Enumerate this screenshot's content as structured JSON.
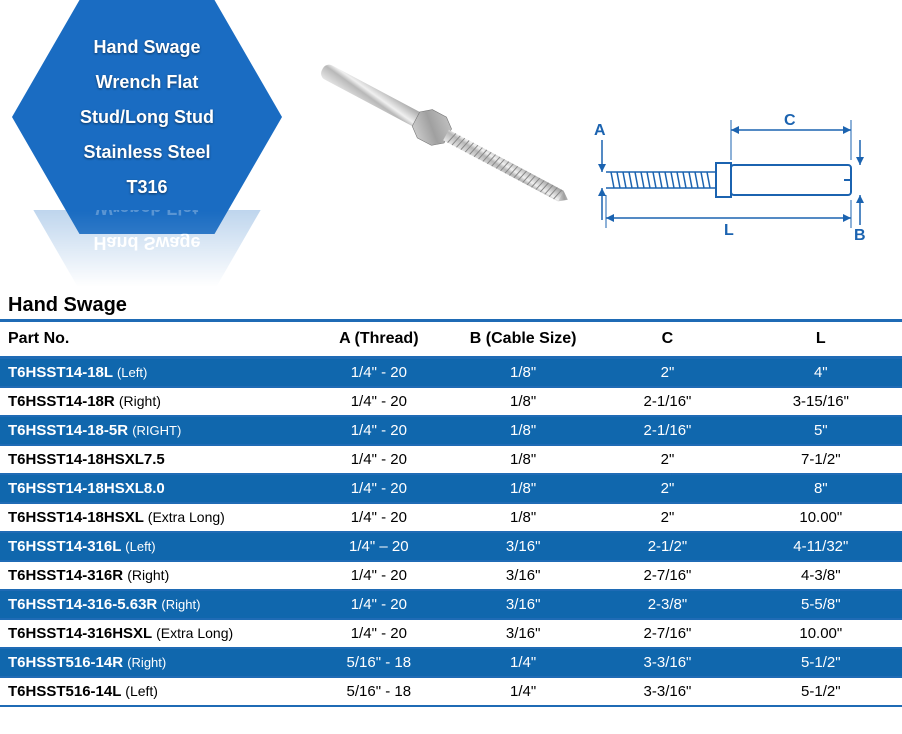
{
  "hexagon": {
    "lines": [
      "Hand Swage",
      "Wrench Flat",
      "Stud/Long Stud",
      "Stainless Steel",
      "T316"
    ],
    "bg_color": "#1a6cc2",
    "text_color": "#ffffff"
  },
  "diagram": {
    "labels": {
      "A": "A",
      "B": "B",
      "C": "C",
      "L": "L"
    },
    "stroke_color": "#1b63b0"
  },
  "table": {
    "title": "Hand Swage",
    "header_border_color": "#1f6bb5",
    "row_border_color": "#1f6bb5",
    "blue_row_bg": "#1067ad",
    "columns": [
      {
        "key": "part",
        "label": "Part No.",
        "align": "left",
        "width": "34%"
      },
      {
        "key": "a",
        "label": "A (Thread)",
        "align": "center",
        "width": "16%"
      },
      {
        "key": "b",
        "label": "B (Cable Size)",
        "align": "center",
        "width": "16%"
      },
      {
        "key": "c",
        "label": "C",
        "align": "center",
        "width": "16%"
      },
      {
        "key": "l",
        "label": "L",
        "align": "center",
        "width": "18%"
      }
    ],
    "rows": [
      {
        "part": "T6HSST14-18L",
        "suffix": "(Left)",
        "a": "1/4\" - 20",
        "b": "1/8\"",
        "c": "2\"",
        "l": "4\"",
        "blue": true
      },
      {
        "part": "T6HSST14-18R",
        "suffix": "(Right)",
        "a": "1/4\" - 20",
        "b": "1/8\"",
        "c": "2-1/16\"",
        "l": "3-15/16\"",
        "blue": false
      },
      {
        "part": "T6HSST14-18-5R",
        "suffix": "(RIGHT)",
        "a": "1/4\" - 20",
        "b": "1/8\"",
        "c": "2-1/16\"",
        "l": "5\"",
        "blue": true
      },
      {
        "part": "T6HSST14-18HSXL7.5",
        "suffix": "",
        "a": "1/4\" - 20",
        "b": "1/8\"",
        "c": "2\"",
        "l": "7-1/2\"",
        "blue": false
      },
      {
        "part": "T6HSST14-18HSXL8.0",
        "suffix": "",
        "a": "1/4\" - 20",
        "b": "1/8\"",
        "c": "2\"",
        "l": "8\"",
        "blue": true
      },
      {
        "part": "T6HSST14-18HSXL",
        "suffix": "(Extra Long)",
        "a": "1/4\" - 20",
        "b": "1/8\"",
        "c": "2\"",
        "l": "10.00\"",
        "blue": false
      },
      {
        "part": "T6HSST14-316L",
        "suffix": "(Left)",
        "a": "1/4\" – 20",
        "b": "3/16\"",
        "c": "2-1/2\"",
        "l": "4-11/32\"",
        "blue": true
      },
      {
        "part": "T6HSST14-316R",
        "suffix": "(Right)",
        "a": "1/4\" - 20",
        "b": "3/16\"",
        "c": "2-7/16\"",
        "l": "4-3/8\"",
        "blue": false
      },
      {
        "part": "T6HSST14-316-5.63R",
        "suffix": "(Right)",
        "a": "1/4\" - 20",
        "b": "3/16\"",
        "c": "2-3/8\"",
        "l": "5-5/8\"",
        "blue": true
      },
      {
        "part": "T6HSST14-316HSXL",
        "suffix": "(Extra Long)",
        "a": "1/4\" - 20",
        "b": "3/16\"",
        "c": "2-7/16\"",
        "l": "10.00\"",
        "blue": false
      },
      {
        "part": "T6HSST516-14R",
        "suffix": "(Right)",
        "a": "5/16\" - 18",
        "b": "1/4\"",
        "c": "3-3/16\"",
        "l": "5-1/2\"",
        "blue": true
      },
      {
        "part": "T6HSST516-14L",
        "suffix": "(Left)",
        "a": "5/16\" - 18",
        "b": "1/4\"",
        "c": "3-3/16\"",
        "l": "5-1/2\"",
        "blue": false
      }
    ]
  }
}
